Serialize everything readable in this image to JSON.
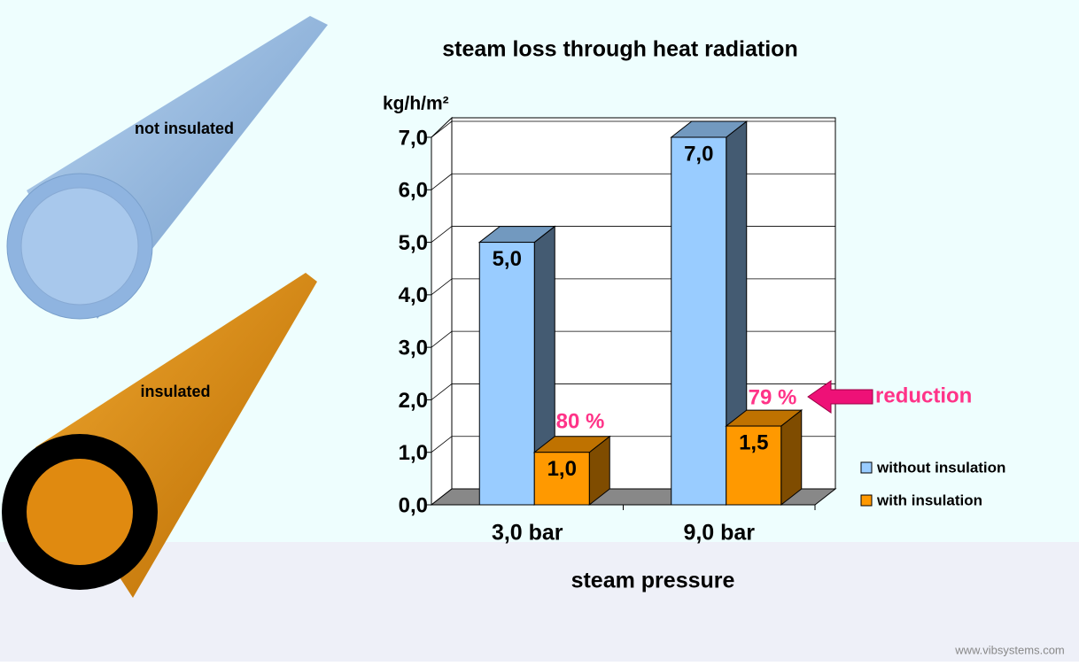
{
  "chart_data": {
    "type": "bar3d",
    "title": "steam loss through heat radiation",
    "y_label": "kg/h/m²",
    "x_label": "steam pressure",
    "categories": [
      "3,0 bar",
      "9,0 bar"
    ],
    "series": [
      {
        "name": "without insulation",
        "color": "#99ccff",
        "values": [
          5.0,
          7.0
        ],
        "value_labels": [
          "5,0",
          "7,0"
        ]
      },
      {
        "name": "with insulation",
        "color": "#ff9900",
        "values": [
          1.0,
          1.5
        ],
        "value_labels": [
          "1,0",
          "1,5"
        ]
      }
    ],
    "ylim": [
      0,
      7
    ],
    "yticks": [
      {
        "value": 0,
        "label": "0,0"
      },
      {
        "value": 1,
        "label": "1,0"
      },
      {
        "value": 2,
        "label": "2,0"
      },
      {
        "value": 3,
        "label": "3,0"
      },
      {
        "value": 4,
        "label": "4,0"
      },
      {
        "value": 5,
        "label": "5,0"
      },
      {
        "value": 6,
        "label": "6,0"
      },
      {
        "value": 7,
        "label": "7,0"
      }
    ],
    "grid": true,
    "annotations": [
      "80 %",
      "79 %",
      "reduction"
    ],
    "pipe_labels": [
      "not insulated",
      "insulated"
    ],
    "footer": "www.vibsystems.com"
  }
}
